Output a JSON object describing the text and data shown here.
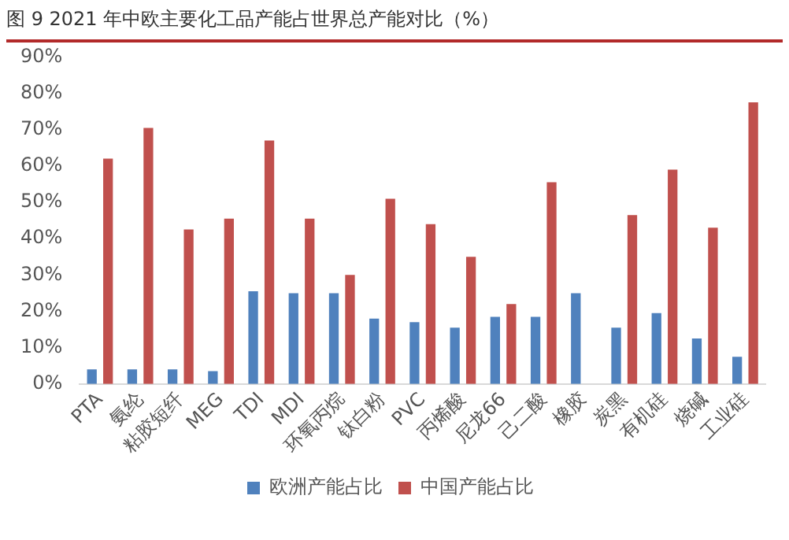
{
  "chart_data": {
    "type": "bar",
    "title": "图 9 2021 年中欧主要化工品产能占世界总产能对比（%）",
    "categories": [
      "PTA",
      "氨纶",
      "粘胶短纤",
      "MEG",
      "TDI",
      "MDI",
      "环氧丙烷",
      "钛白粉",
      "PVC",
      "丙烯酸",
      "尼龙66",
      "己二酸",
      "橡胶",
      "炭黑",
      "有机硅",
      "烧碱",
      "工业硅"
    ],
    "series": [
      {
        "name": "欧洲产能占比",
        "color": "#4f81bd",
        "values": [
          4,
          4,
          4,
          3.5,
          25.5,
          25,
          25,
          18,
          17,
          15.5,
          18.5,
          18.5,
          25,
          15.5,
          19.5,
          12.5,
          7.5
        ]
      },
      {
        "name": "中国产能占比",
        "color": "#c0504d",
        "values": [
          62,
          70.5,
          42.5,
          45.5,
          67,
          45.5,
          30,
          51,
          44,
          35,
          22,
          55.5,
          null,
          46.5,
          59,
          43,
          77.5
        ]
      }
    ],
    "ylim": [
      0,
      90
    ],
    "yticks": [
      {
        "value": 0,
        "label": "0%"
      },
      {
        "value": 10,
        "label": "10%"
      },
      {
        "value": 20,
        "label": "20%"
      },
      {
        "value": 30,
        "label": "30%"
      },
      {
        "value": 40,
        "label": "40%"
      },
      {
        "value": 50,
        "label": "50%"
      },
      {
        "value": 60,
        "label": "60%"
      },
      {
        "value": 70,
        "label": "70%"
      },
      {
        "value": 80,
        "label": "80%"
      },
      {
        "value": 90,
        "label": "90%"
      }
    ],
    "grid": false,
    "legend": "bottom"
  }
}
